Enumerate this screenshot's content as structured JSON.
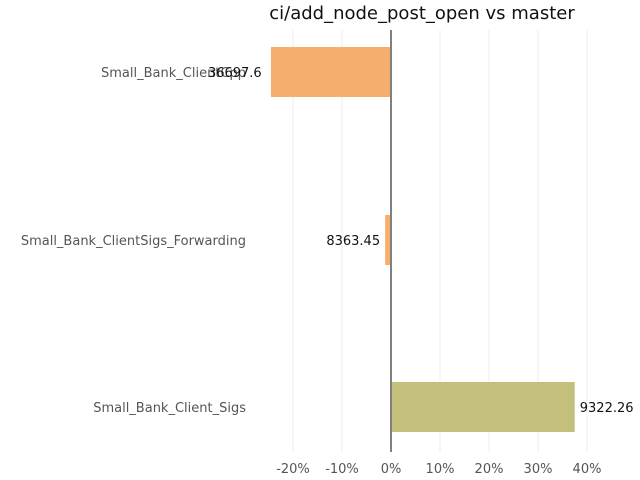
{
  "chart_data": {
    "type": "bar",
    "orientation": "horizontal",
    "title": "ci/add_node_post_open vs master",
    "xlabel": "",
    "ylabel": "",
    "xlim": [
      -25,
      42
    ],
    "grid": true,
    "legend": "none",
    "x_ticks": [
      "-20%",
      "-10%",
      "0%",
      "10%",
      "20%",
      "30%",
      "40%"
    ],
    "x_tick_values": [
      -20,
      -10,
      0,
      10,
      20,
      30,
      40
    ],
    "categories": [
      "Small_Bank_ClientCpp",
      "Small_Bank_ClientSigs_Forwarding",
      "Small_Bank_Client_Sigs"
    ],
    "values": [
      -24.5,
      -1.2,
      37.5
    ],
    "labels": [
      "36697.6",
      "8363.45",
      "9322.26"
    ],
    "colors": [
      "#f5ae6d",
      "#f5ae6d",
      "#c4c07b"
    ]
  },
  "colors": {
    "grid": "#eeeeee",
    "zero_line": "#808080"
  }
}
